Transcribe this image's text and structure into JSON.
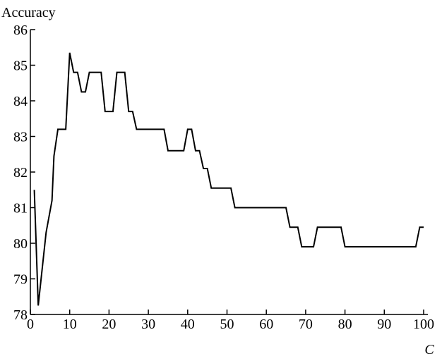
{
  "chart_data": {
    "type": "line",
    "y_label": "Accuracy",
    "x_label": "C",
    "x": [
      1,
      2,
      4,
      5.5,
      6,
      7,
      9,
      10,
      11,
      12,
      13,
      14,
      15,
      18,
      19,
      21,
      22,
      24,
      25,
      26,
      27,
      34,
      35,
      39,
      40,
      41,
      42,
      43,
      44,
      45,
      46,
      51,
      52,
      65,
      66,
      68,
      69,
      72,
      73,
      79,
      80,
      98,
      99,
      100
    ],
    "series": [
      {
        "name": "Accuracy",
        "color": "#000000",
        "values": [
          81.5,
          78.25,
          80.3,
          81.2,
          82.45,
          83.2,
          83.2,
          85.35,
          84.8,
          84.8,
          84.25,
          84.25,
          84.8,
          84.8,
          83.7,
          83.7,
          84.8,
          84.8,
          83.7,
          83.7,
          83.2,
          83.2,
          82.6,
          82.6,
          83.2,
          83.2,
          82.6,
          82.6,
          82.1,
          82.1,
          81.55,
          81.55,
          81,
          81,
          80.45,
          80.45,
          79.9,
          79.9,
          80.45,
          80.45,
          79.9,
          79.9,
          80.45,
          80.45
        ]
      }
    ],
    "xlim": [
      0,
      100
    ],
    "ylim": [
      78,
      86
    ],
    "xticks": [
      0,
      10,
      20,
      30,
      40,
      50,
      60,
      70,
      80,
      90,
      100
    ],
    "yticks": [
      78,
      79,
      80,
      81,
      82,
      83,
      84,
      85,
      86
    ]
  }
}
